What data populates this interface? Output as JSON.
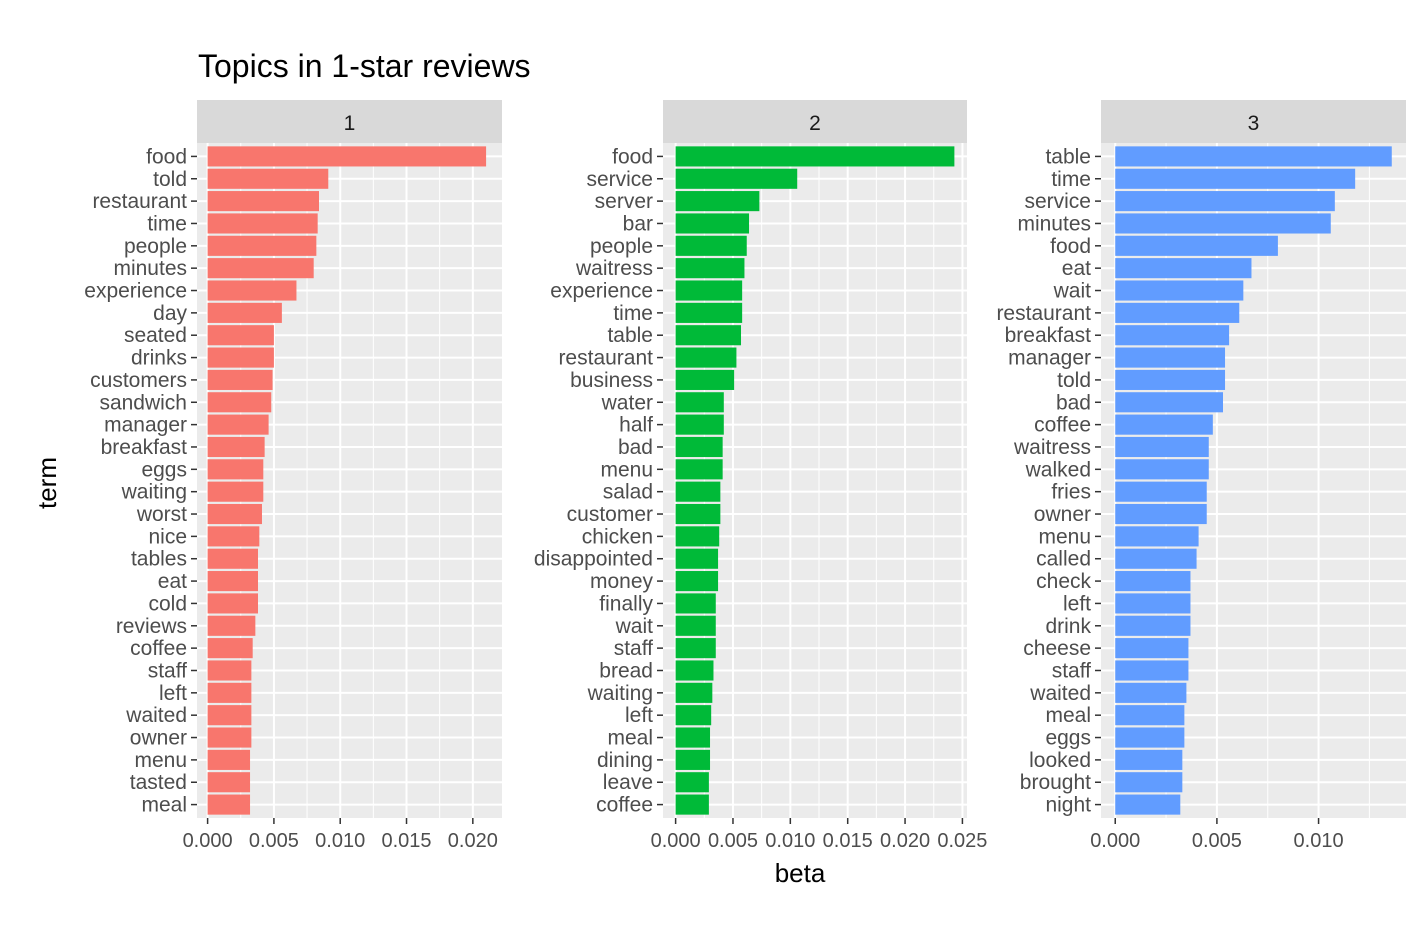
{
  "chart_data": {
    "type": "bar",
    "orientation": "horizontal",
    "title": "Topics in 1-star reviews",
    "xlabel": "beta",
    "ylabel": "term",
    "grid": true,
    "legend": "none",
    "panels": [
      {
        "name": "1",
        "color": "#F8766D",
        "xlim": [
          -0.0008,
          0.0222
        ],
        "ticks": [
          0.0,
          0.005,
          0.01,
          0.015,
          0.02
        ],
        "tick_labels": [
          "0.000",
          "0.005",
          "0.010",
          "0.015",
          "0.020"
        ],
        "categories": [
          "food",
          "told",
          "restaurant",
          "time",
          "people",
          "minutes",
          "experience",
          "day",
          "seated",
          "drinks",
          "customers",
          "sandwich",
          "manager",
          "breakfast",
          "eggs",
          "waiting",
          "worst",
          "nice",
          "tables",
          "eat",
          "cold",
          "reviews",
          "coffee",
          "staff",
          "left",
          "waited",
          "owner",
          "menu",
          "tasted",
          "meal"
        ],
        "values": [
          0.021,
          0.0091,
          0.0084,
          0.0083,
          0.0082,
          0.008,
          0.0067,
          0.0056,
          0.005,
          0.005,
          0.0049,
          0.0048,
          0.0046,
          0.0043,
          0.0042,
          0.0042,
          0.0041,
          0.0039,
          0.0038,
          0.0038,
          0.0038,
          0.0036,
          0.0034,
          0.0033,
          0.0033,
          0.0033,
          0.0033,
          0.0032,
          0.0032,
          0.0032
        ]
      },
      {
        "name": "2",
        "color": "#00BA38",
        "xlim": [
          -0.0011,
          0.0254
        ],
        "ticks": [
          0.0,
          0.005,
          0.01,
          0.015,
          0.02,
          0.025
        ],
        "tick_labels": [
          "0.000",
          "0.005",
          "0.010",
          "0.015",
          "0.020",
          "0.025"
        ],
        "categories": [
          "food",
          "service",
          "server",
          "bar",
          "people",
          "waitress",
          "experience",
          "time",
          "table",
          "restaurant",
          "business",
          "water",
          "half",
          "bad",
          "menu",
          "salad",
          "customer",
          "chicken",
          "disappointed",
          "money",
          "finally",
          "wait",
          "staff",
          "bread",
          "waiting",
          "left",
          "meal",
          "dining",
          "leave",
          "coffee"
        ],
        "values": [
          0.0243,
          0.0106,
          0.0073,
          0.0064,
          0.0062,
          0.006,
          0.0058,
          0.0058,
          0.0057,
          0.0053,
          0.0051,
          0.0042,
          0.0042,
          0.0041,
          0.0041,
          0.0039,
          0.0039,
          0.0038,
          0.0037,
          0.0037,
          0.0035,
          0.0035,
          0.0035,
          0.0033,
          0.0032,
          0.0031,
          0.003,
          0.003,
          0.0029,
          0.0029
        ]
      },
      {
        "name": "3",
        "color": "#619CFF",
        "xlim": [
          -0.0007,
          0.0143
        ],
        "ticks": [
          0.0,
          0.005,
          0.01
        ],
        "tick_labels": [
          "0.000",
          "0.005",
          "0.010"
        ],
        "categories": [
          "table",
          "time",
          "service",
          "minutes",
          "food",
          "eat",
          "wait",
          "restaurant",
          "breakfast",
          "manager",
          "told",
          "bad",
          "coffee",
          "waitress",
          "walked",
          "fries",
          "owner",
          "menu",
          "called",
          "check",
          "left",
          "drink",
          "cheese",
          "staff",
          "waited",
          "meal",
          "eggs",
          "looked",
          "brought",
          "night"
        ],
        "values": [
          0.0136,
          0.0118,
          0.0108,
          0.0106,
          0.008,
          0.0067,
          0.0063,
          0.0061,
          0.0056,
          0.0054,
          0.0054,
          0.0053,
          0.0048,
          0.0046,
          0.0046,
          0.0045,
          0.0045,
          0.0041,
          0.004,
          0.0037,
          0.0037,
          0.0037,
          0.0036,
          0.0036,
          0.0035,
          0.0034,
          0.0034,
          0.0033,
          0.0033,
          0.0032
        ]
      }
    ]
  }
}
